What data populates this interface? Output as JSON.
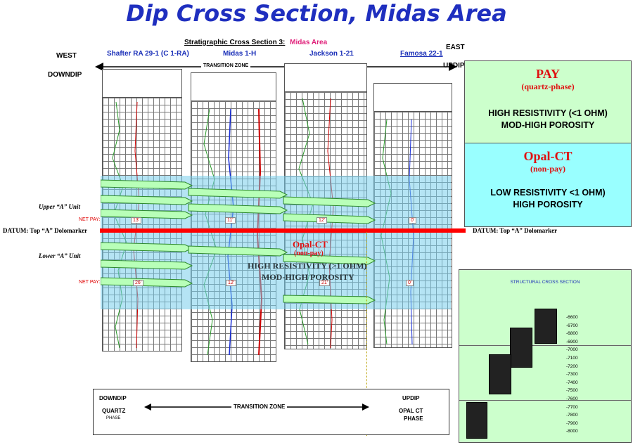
{
  "title": "Dip Cross Section, Midas Area",
  "strat_title": "Stratigraphic Cross Section 3:",
  "strat_area": "Midas Area",
  "west": "WEST",
  "downdip": "DOWNDIP",
  "east": "EAST",
  "updip": "UPDIP",
  "transition_zone": "TRANSITION ZONE",
  "wells": [
    "Shafter RA 29-1 (C 1-RA)",
    "Midas 1-H",
    "Jackson 1-21",
    "Famosa 22-1"
  ],
  "upper_unit": "Upper “A” Unit",
  "lower_unit": "Lower “A” Unit",
  "net_pay_label": "NET PAY:",
  "net_pay_upper": [
    "13'",
    "11'",
    "12'",
    "0'"
  ],
  "net_pay_lower": [
    "26'",
    "12'",
    "21'",
    "0'"
  ],
  "datum_left": "DATUM:  Top “A” Dolomarker",
  "datum_right": "DATUM:  Top “A” Dolomarker",
  "overlay_opal": "Opal-CT",
  "overlay_nonpay": "(non-pay)",
  "overlay_line1": "HIGH RESISTIVITY (>1 OHM)",
  "overlay_line2": "MOD-HIGH POROSITY",
  "pay_box": {
    "head": "PAY",
    "sub": "(quartz-phase)",
    "line1": "HIGH RESISTIVITY (<1 OHM)",
    "line2": "MOD-HIGH POROSITY"
  },
  "opal_box": {
    "head": "Opal-CT",
    "sub": "(non-pay)",
    "line1": "LOW RESISTIVITY <1 OHM)",
    "line2": "HIGH POROSITY"
  },
  "bottom": {
    "left_title": "DOWNDIP",
    "left_a": "QUARTZ",
    "left_b": "PHASE",
    "center": "TRANSITION ZONE",
    "right_title": "UPDIP",
    "right_a": "OPAL CT",
    "right_b": "PHASE"
  },
  "structural": {
    "title": "STRUCTURAL CROSS SECTION",
    "ticks": [
      "-6600",
      "-6700",
      "-6800",
      "-6900",
      "-7000",
      "-7100",
      "-7200",
      "-7300",
      "-7400",
      "-7500",
      "-7600",
      "-7700",
      "-7800",
      "-7900",
      "-8000"
    ]
  },
  "colors": {
    "title": "#1f2fbf",
    "datum_line": "#ff0000",
    "pay_bg": "#ccffcc",
    "opal_bg": "#99ffff",
    "overlay_bg": "#8ad8f0"
  }
}
